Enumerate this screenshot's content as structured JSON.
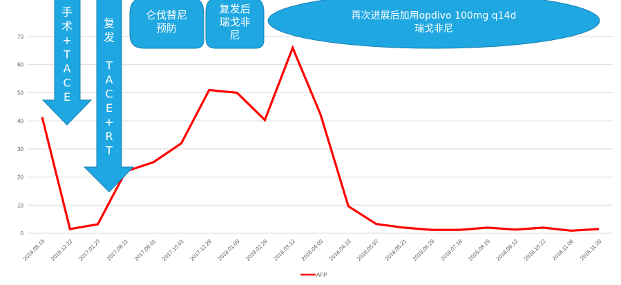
{
  "chart_data": {
    "type": "line",
    "title": "",
    "xlabel": "",
    "ylabel": "",
    "ylim": [
      0,
      70
    ],
    "yticks": [
      0,
      10,
      20,
      30,
      40,
      50,
      60,
      70
    ],
    "grid": true,
    "legend_position": "bottom",
    "categories": [
      "2016.08.15",
      "2016.12.12",
      "2017.01.27",
      "2017.08.11",
      "2017.09.01",
      "2017.10.01",
      "2017.12.28",
      "2018.01.09",
      "2018.02.26",
      "2018.03.12",
      "2018.04.03",
      "2018.04.23",
      "2018.05.07",
      "2018.05.21",
      "2018.06.20",
      "2018.07.18",
      "2018.08.15",
      "2018.09.12",
      "2018.10.22",
      "2018.11.06",
      "2018.11.20"
    ],
    "series": [
      {
        "name": "AFP",
        "color": "#ff0000",
        "values": [
          41.3,
          1.5,
          3.2,
          22,
          25.3,
          32,
          51,
          50,
          40.3,
          66,
          42.3,
          9.6,
          3.3,
          2,
          1.2,
          1.2,
          2,
          1.3,
          2,
          0.9,
          1.5
        ]
      }
    ],
    "annotations": [
      {
        "type": "down-arrow",
        "text": "手术+TACE",
        "lines": [
          "手",
          "术",
          "+",
          "T",
          "A",
          "C",
          "E"
        ]
      },
      {
        "type": "down-arrow",
        "text": "复发 TACE+RT",
        "lines": [
          "复",
          "发",
          "",
          "T",
          "A",
          "C",
          "E",
          "+",
          "R",
          "T"
        ]
      },
      {
        "type": "rounded-box",
        "text": "仑伐替尼预防",
        "lines": [
          "仑伐替尼",
          "预防"
        ]
      },
      {
        "type": "rounded-box",
        "text": "复发后瑞戈非尼",
        "lines": [
          "复发后",
          "瑞戈非",
          "尼"
        ]
      },
      {
        "type": "ellipse",
        "text": "再次进展后加用opdivo 100mg q14d 瑞戈非尼",
        "lines": [
          "再次进展后加用opdivo  100mg  q14d",
          "瑞戈非尼"
        ]
      }
    ]
  },
  "colors": {
    "line": "#ff0000",
    "grid": "#d9d9d9",
    "shape_fill": "#1ea7e1",
    "shape_stroke": "#1b7fb0",
    "axis_text": "#595959"
  },
  "legend": {
    "label": "AFP"
  }
}
